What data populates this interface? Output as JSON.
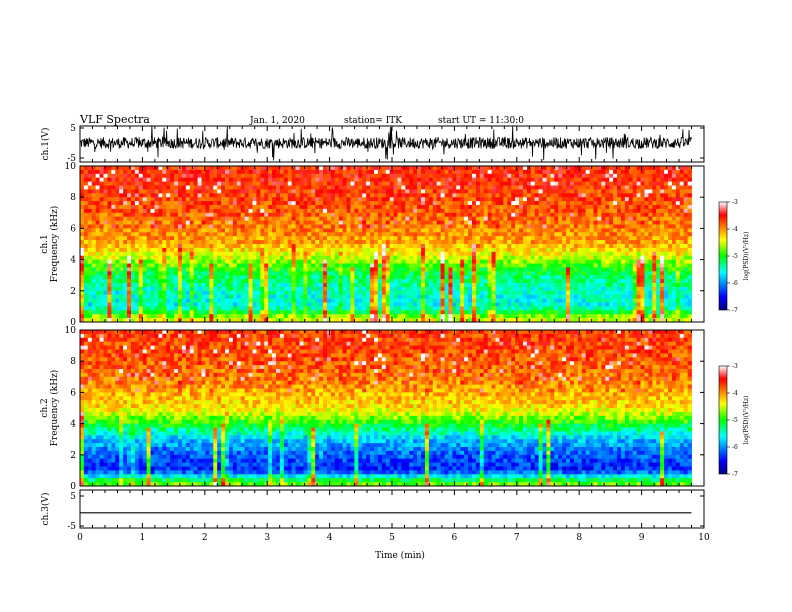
{
  "header": {
    "title": "VLF Spectra",
    "date": "Jan. 1, 2020",
    "station": "station= ITK",
    "start": "start UT = 11:30:0"
  },
  "chart_data": [
    {
      "type": "line",
      "panel": "ch1-waveform",
      "ylabel": "ch.1(V)",
      "ylim": [
        -5,
        5
      ],
      "yticks": [
        "5",
        "-5"
      ],
      "description_values": "noise-like signal around 0 V, amplitude ~2-5 V"
    },
    {
      "type": "heatmap",
      "panel": "ch1-spectrogram",
      "ylabel": "ch.1\nFrequency (kHz)",
      "ylim": [
        0,
        10
      ],
      "yticks": [
        "0",
        "2",
        "4",
        "6",
        "8",
        "10"
      ],
      "colorbar": {
        "label": "log(PSD)(V²/Hz)",
        "range": [
          -7,
          -3
        ],
        "ticks": [
          "-3",
          "-4",
          "-5",
          "-6",
          "-7"
        ]
      },
      "rows_log_psd": [
        {
          "freq_khz": 9,
          "value": -3.6
        },
        {
          "freq_khz": 7,
          "value": -3.8
        },
        {
          "freq_khz": 5,
          "value": -4.1
        },
        {
          "freq_khz": 4,
          "value": -4.6
        },
        {
          "freq_khz": 3,
          "value": -5.2
        },
        {
          "freq_khz": 2,
          "value": -5.5
        },
        {
          "freq_khz": 1,
          "value": -5.6
        },
        {
          "freq_khz": 0.2,
          "value": -4.5
        }
      ]
    },
    {
      "type": "heatmap",
      "panel": "ch2-spectrogram",
      "ylabel": "ch.2\nFrequency (kHz)",
      "ylim": [
        0,
        10
      ],
      "yticks": [
        "0",
        "2",
        "4",
        "6",
        "8",
        "10"
      ],
      "colorbar": {
        "label": "log(PSD)(V²/Hz)",
        "range": [
          -7,
          -3
        ],
        "ticks": [
          "-3",
          "-4",
          "-5",
          "-6",
          "-7"
        ]
      },
      "rows_log_psd": [
        {
          "freq_khz": 9,
          "value": -3.7
        },
        {
          "freq_khz": 7,
          "value": -3.9
        },
        {
          "freq_khz": 5,
          "value": -4.3
        },
        {
          "freq_khz": 4,
          "value": -5.0
        },
        {
          "freq_khz": 3,
          "value": -5.8
        },
        {
          "freq_khz": 2,
          "value": -6.2
        },
        {
          "freq_khz": 1,
          "value": -6.4
        },
        {
          "freq_khz": 0.2,
          "value": -4.8
        }
      ]
    },
    {
      "type": "line",
      "panel": "ch3-waveform",
      "ylabel": "ch.3(V)",
      "ylim": [
        -5,
        5
      ],
      "yticks": [
        "5",
        "-5"
      ],
      "x": [
        0,
        9.8
      ],
      "y": [
        -1,
        -1
      ]
    }
  ],
  "x_axis": {
    "label": "Time (min)",
    "range": [
      0,
      10
    ],
    "ticks": [
      "0",
      "1",
      "2",
      "3",
      "4",
      "5",
      "6",
      "7",
      "8",
      "9",
      "10"
    ]
  },
  "colors": {
    "jet": [
      "#000080",
      "#0000ff",
      "#00ffff",
      "#00ff00",
      "#ffff00",
      "#ff0000",
      "#800000"
    ]
  }
}
